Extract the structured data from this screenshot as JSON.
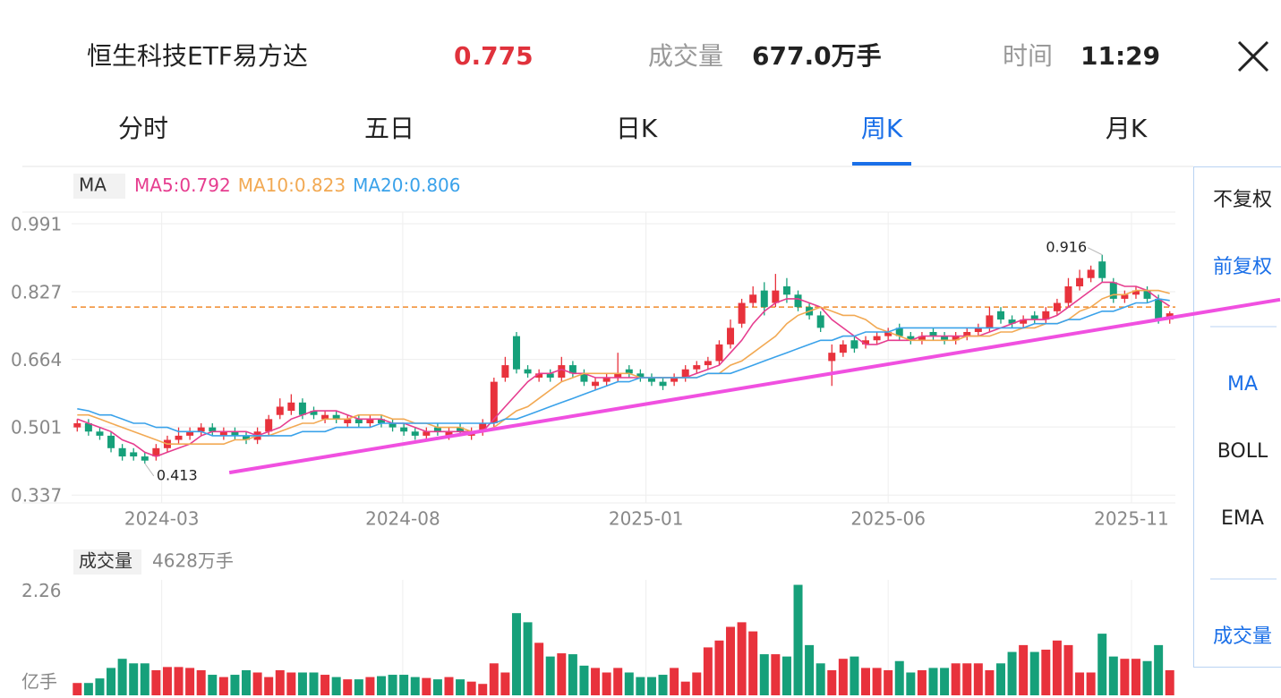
{
  "header": {
    "title": "恒生科技ETF易方达",
    "price": "0.775",
    "volume_label": "成交量",
    "volume_value": "677.0万手",
    "time_label": "时间",
    "time_value": "11:29"
  },
  "tabs": [
    "分时",
    "五日",
    "日K",
    "周K",
    "月K"
  ],
  "active_tab": 3,
  "side_menu": {
    "items": [
      "不复权",
      "前复权",
      "MA",
      "BOLL",
      "EMA",
      "成交量"
    ],
    "active": [
      1,
      2,
      5
    ]
  },
  "chart_data": {
    "type": "candlestick",
    "up_color": "#e8323c",
    "down_color": "#16a07a",
    "indicator_label": "MA",
    "legend_separator": ":",
    "xlim": [
      -0.5,
      97.5
    ],
    "ylim": [
      0.318,
      1.019
    ],
    "yticks": [
      0.991,
      0.827,
      0.664,
      0.501,
      0.337
    ],
    "xticks": [
      {
        "value": 7.5,
        "label": "2024-03"
      },
      {
        "value": 28.9,
        "label": "2024-08"
      },
      {
        "value": 50.5,
        "label": "2025-01"
      },
      {
        "value": 72,
        "label": "2025-06"
      },
      {
        "value": 93.6,
        "label": "2025-11"
      }
    ],
    "grid": true,
    "price_line": {
      "value": 0.79,
      "color": "#f08a2c"
    },
    "trendline": {
      "x": [
        13.5,
        106.8
      ],
      "y": [
        0.391,
        0.808
      ],
      "color": "#f050e0"
    },
    "open": [
      0.5,
      0.51,
      0.49,
      0.48,
      0.45,
      0.44,
      0.43,
      0.43,
      0.45,
      0.47,
      0.48,
      0.49,
      0.5,
      0.48,
      0.49,
      0.48,
      0.47,
      0.49,
      0.53,
      0.54,
      0.56,
      0.54,
      0.52,
      0.53,
      0.51,
      0.52,
      0.51,
      0.52,
      0.51,
      0.5,
      0.49,
      0.48,
      0.5,
      0.48,
      0.5,
      0.48,
      0.49,
      0.51,
      0.62,
      0.72,
      0.64,
      0.62,
      0.63,
      0.62,
      0.65,
      0.63,
      0.6,
      0.61,
      0.62,
      0.64,
      0.63,
      0.62,
      0.61,
      0.61,
      0.62,
      0.64,
      0.65,
      0.66,
      0.7,
      0.75,
      0.8,
      0.83,
      0.8,
      0.84,
      0.82,
      0.79,
      0.77,
      0.66,
      0.68,
      0.71,
      0.7,
      0.71,
      0.72,
      0.74,
      0.72,
      0.71,
      0.73,
      0.72,
      0.71,
      0.72,
      0.73,
      0.74,
      0.78,
      0.76,
      0.75,
      0.77,
      0.76,
      0.78,
      0.8,
      0.84,
      0.86,
      0.9,
      0.85,
      0.81,
      0.82,
      0.83,
      0.81,
      0.76
    ],
    "high": [
      0.52,
      0.52,
      0.5,
      0.49,
      0.46,
      0.45,
      0.44,
      0.46,
      0.48,
      0.5,
      0.5,
      0.51,
      0.51,
      0.5,
      0.5,
      0.49,
      0.5,
      0.53,
      0.57,
      0.58,
      0.57,
      0.55,
      0.54,
      0.54,
      0.53,
      0.53,
      0.53,
      0.53,
      0.52,
      0.51,
      0.5,
      0.5,
      0.51,
      0.5,
      0.51,
      0.5,
      0.52,
      0.62,
      0.67,
      0.73,
      0.65,
      0.64,
      0.64,
      0.67,
      0.66,
      0.64,
      0.62,
      0.63,
      0.68,
      0.65,
      0.64,
      0.63,
      0.62,
      0.63,
      0.65,
      0.66,
      0.67,
      0.71,
      0.76,
      0.81,
      0.84,
      0.85,
      0.87,
      0.86,
      0.83,
      0.8,
      0.78,
      0.7,
      0.71,
      0.72,
      0.72,
      0.73,
      0.74,
      0.75,
      0.73,
      0.73,
      0.74,
      0.73,
      0.73,
      0.74,
      0.75,
      0.79,
      0.79,
      0.77,
      0.77,
      0.78,
      0.79,
      0.81,
      0.86,
      0.88,
      0.89,
      0.916,
      0.86,
      0.83,
      0.84,
      0.84,
      0.82,
      0.78
    ],
    "low": [
      0.49,
      0.48,
      0.47,
      0.44,
      0.42,
      0.42,
      0.413,
      0.42,
      0.44,
      0.46,
      0.47,
      0.48,
      0.48,
      0.47,
      0.47,
      0.46,
      0.46,
      0.48,
      0.52,
      0.53,
      0.52,
      0.52,
      0.51,
      0.51,
      0.5,
      0.5,
      0.5,
      0.5,
      0.49,
      0.48,
      0.47,
      0.47,
      0.48,
      0.47,
      0.48,
      0.47,
      0.48,
      0.5,
      0.61,
      0.63,
      0.62,
      0.61,
      0.61,
      0.61,
      0.62,
      0.6,
      0.59,
      0.6,
      0.61,
      0.62,
      0.61,
      0.6,
      0.59,
      0.6,
      0.61,
      0.63,
      0.64,
      0.65,
      0.69,
      0.74,
      0.79,
      0.77,
      0.79,
      0.8,
      0.78,
      0.76,
      0.73,
      0.6,
      0.67,
      0.68,
      0.69,
      0.7,
      0.71,
      0.71,
      0.7,
      0.7,
      0.71,
      0.7,
      0.7,
      0.71,
      0.72,
      0.73,
      0.75,
      0.74,
      0.74,
      0.75,
      0.75,
      0.77,
      0.79,
      0.83,
      0.85,
      0.85,
      0.8,
      0.8,
      0.81,
      0.8,
      0.75,
      0.75
    ],
    "close": [
      0.51,
      0.49,
      0.48,
      0.45,
      0.43,
      0.43,
      0.42,
      0.45,
      0.47,
      0.48,
      0.49,
      0.5,
      0.49,
      0.49,
      0.48,
      0.47,
      0.49,
      0.52,
      0.55,
      0.56,
      0.53,
      0.53,
      0.53,
      0.52,
      0.52,
      0.51,
      0.52,
      0.51,
      0.5,
      0.49,
      0.48,
      0.49,
      0.49,
      0.49,
      0.49,
      0.49,
      0.51,
      0.61,
      0.65,
      0.64,
      0.63,
      0.63,
      0.62,
      0.65,
      0.63,
      0.61,
      0.61,
      0.62,
      0.63,
      0.63,
      0.62,
      0.61,
      0.6,
      0.62,
      0.64,
      0.65,
      0.66,
      0.7,
      0.74,
      0.8,
      0.82,
      0.79,
      0.83,
      0.82,
      0.79,
      0.77,
      0.74,
      0.68,
      0.7,
      0.69,
      0.71,
      0.72,
      0.73,
      0.72,
      0.71,
      0.72,
      0.72,
      0.71,
      0.72,
      0.73,
      0.74,
      0.77,
      0.76,
      0.75,
      0.76,
      0.76,
      0.78,
      0.8,
      0.84,
      0.86,
      0.88,
      0.86,
      0.81,
      0.82,
      0.83,
      0.81,
      0.76,
      0.775
    ],
    "series": [
      {
        "name": "MA5",
        "color": "#e63d8f",
        "values": [
          0.52,
          0.51,
          0.5,
          0.49,
          0.47,
          0.46,
          0.44,
          0.43,
          0.44,
          0.45,
          0.46,
          0.48,
          0.49,
          0.49,
          0.49,
          0.49,
          0.48,
          0.49,
          0.5,
          0.52,
          0.53,
          0.54,
          0.54,
          0.54,
          0.53,
          0.52,
          0.52,
          0.52,
          0.51,
          0.51,
          0.5,
          0.49,
          0.49,
          0.49,
          0.49,
          0.49,
          0.49,
          0.52,
          0.55,
          0.58,
          0.61,
          0.63,
          0.63,
          0.64,
          0.63,
          0.63,
          0.62,
          0.62,
          0.62,
          0.62,
          0.62,
          0.62,
          0.62,
          0.62,
          0.62,
          0.63,
          0.64,
          0.65,
          0.68,
          0.71,
          0.75,
          0.78,
          0.8,
          0.81,
          0.81,
          0.8,
          0.79,
          0.76,
          0.74,
          0.72,
          0.7,
          0.7,
          0.71,
          0.71,
          0.71,
          0.72,
          0.72,
          0.72,
          0.72,
          0.72,
          0.72,
          0.73,
          0.74,
          0.75,
          0.76,
          0.76,
          0.76,
          0.77,
          0.79,
          0.81,
          0.83,
          0.85,
          0.85,
          0.84,
          0.84,
          0.83,
          0.81,
          0.792
        ]
      },
      {
        "name": "MA10",
        "color": "#f2a953",
        "values": [
          0.53,
          0.53,
          0.52,
          0.51,
          0.5,
          0.49,
          0.48,
          0.47,
          0.46,
          0.46,
          0.46,
          0.46,
          0.46,
          0.46,
          0.47,
          0.47,
          0.48,
          0.48,
          0.49,
          0.5,
          0.51,
          0.51,
          0.52,
          0.52,
          0.52,
          0.53,
          0.53,
          0.53,
          0.52,
          0.52,
          0.51,
          0.51,
          0.5,
          0.5,
          0.5,
          0.49,
          0.49,
          0.5,
          0.52,
          0.54,
          0.55,
          0.57,
          0.59,
          0.61,
          0.62,
          0.63,
          0.63,
          0.63,
          0.63,
          0.63,
          0.62,
          0.62,
          0.62,
          0.62,
          0.62,
          0.62,
          0.63,
          0.63,
          0.65,
          0.66,
          0.68,
          0.7,
          0.72,
          0.75,
          0.77,
          0.78,
          0.79,
          0.78,
          0.77,
          0.77,
          0.76,
          0.74,
          0.73,
          0.72,
          0.71,
          0.71,
          0.71,
          0.71,
          0.71,
          0.72,
          0.72,
          0.72,
          0.73,
          0.73,
          0.74,
          0.74,
          0.75,
          0.75,
          0.76,
          0.78,
          0.79,
          0.81,
          0.82,
          0.82,
          0.83,
          0.83,
          0.83,
          0.823
        ]
      },
      {
        "name": "MA20",
        "color": "#3aa2ea",
        "values": [
          0.545,
          0.54,
          0.53,
          0.53,
          0.52,
          0.51,
          0.51,
          0.5,
          0.5,
          0.49,
          0.49,
          0.49,
          0.48,
          0.48,
          0.48,
          0.48,
          0.48,
          0.48,
          0.48,
          0.48,
          0.49,
          0.49,
          0.49,
          0.5,
          0.5,
          0.5,
          0.5,
          0.51,
          0.51,
          0.51,
          0.51,
          0.51,
          0.51,
          0.51,
          0.51,
          0.51,
          0.51,
          0.51,
          0.52,
          0.52,
          0.53,
          0.54,
          0.55,
          0.56,
          0.57,
          0.58,
          0.59,
          0.6,
          0.61,
          0.61,
          0.62,
          0.62,
          0.62,
          0.62,
          0.62,
          0.62,
          0.63,
          0.63,
          0.63,
          0.64,
          0.65,
          0.66,
          0.67,
          0.68,
          0.69,
          0.7,
          0.71,
          0.71,
          0.72,
          0.72,
          0.73,
          0.73,
          0.73,
          0.74,
          0.74,
          0.74,
          0.74,
          0.74,
          0.74,
          0.74,
          0.74,
          0.74,
          0.74,
          0.74,
          0.74,
          0.75,
          0.75,
          0.75,
          0.76,
          0.76,
          0.77,
          0.78,
          0.78,
          0.79,
          0.8,
          0.8,
          0.81,
          0.806
        ]
      }
    ],
    "annotations": [
      {
        "path": "high",
        "index": 91
      },
      {
        "path": "low",
        "index": 6
      }
    ],
    "volume_panel": {
      "label": "成交量",
      "value_text": "4628万手",
      "unit": "亿手",
      "ylim": [
        0,
        2.45
      ],
      "yticks": [
        2.26
      ],
      "values": [
        0.27,
        0.27,
        0.37,
        0.6,
        0.8,
        0.7,
        0.7,
        0.55,
        0.62,
        0.62,
        0.6,
        0.55,
        0.45,
        0.4,
        0.45,
        0.55,
        0.5,
        0.4,
        0.55,
        0.5,
        0.5,
        0.5,
        0.45,
        0.4,
        0.35,
        0.35,
        0.4,
        0.42,
        0.45,
        0.45,
        0.4,
        0.38,
        0.35,
        0.4,
        0.35,
        0.3,
        0.25,
        0.7,
        0.5,
        1.8,
        1.6,
        1.15,
        0.85,
        0.92,
        0.9,
        0.65,
        0.6,
        0.5,
        0.6,
        0.5,
        0.4,
        0.4,
        0.45,
        0.6,
        0.3,
        0.5,
        1.05,
        1.2,
        1.5,
        1.6,
        1.4,
        0.9,
        0.9,
        0.85,
        2.42,
        1.1,
        0.7,
        0.55,
        0.8,
        0.85,
        0.6,
        0.6,
        0.55,
        0.75,
        0.5,
        0.55,
        0.6,
        0.6,
        0.7,
        0.7,
        0.7,
        0.55,
        0.7,
        0.95,
        1.1,
        0.95,
        1.0,
        1.2,
        1.1,
        0.5,
        0.5,
        1.35,
        0.85,
        0.8,
        0.8,
        0.75,
        1.1,
        0.55
      ]
    }
  }
}
